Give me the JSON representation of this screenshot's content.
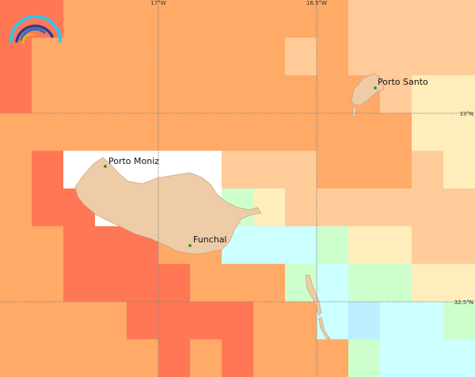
{
  "palette": {
    "R": "#ff7755",
    "O": "#ffaa66",
    "P": "#ffcc99",
    "Y": "#ffeebb",
    "G": "#ccffcc",
    "C": "#ccffff",
    "B": "#bbeeff",
    "W": "#ffffff"
  },
  "cells": [
    "RROOOOOOOOOPPPP",
    "ROOOOOOOOPOPPPP",
    "ROOOOOOOOOOOPYY",
    "OOOOOOOOOOOOOYY",
    "ORWWWWWPPPOOOPY",
    "ORRWWWWGYPPPPPP",
    "OORRROOCCCGYYPP",
    "OORRRROOOGCGGYY",
    "OOOORRRROOCBCCG",
    "OOOOOROROOOGCCC"
  ],
  "land_color": "#eecca8",
  "graticule": {
    "lon_labels": [
      "17°W",
      "16.5°W"
    ],
    "lat_labels": [
      "33°N",
      "32.5°N"
    ]
  },
  "towns": [
    {
      "name": "Porto Santo"
    },
    {
      "name": "Porto Moniz"
    },
    {
      "name": "Funchal"
    }
  ],
  "logo": "rainbow-arcs-logo"
}
